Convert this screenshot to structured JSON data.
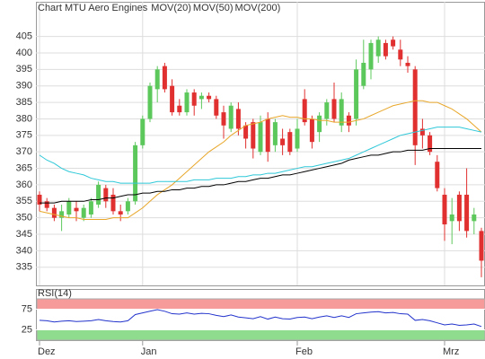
{
  "chart_data": [
    {
      "type": "candlestick",
      "title": "Chart MTU Aero Engines",
      "title_color": "#d9452b",
      "up_color": "#5cc85c",
      "down_color": "#e03030",
      "open": [
        357,
        355,
        353,
        350,
        351,
        353,
        350,
        351,
        354,
        359,
        357,
        352,
        352,
        355,
        372,
        380,
        389,
        396,
        390,
        384,
        382,
        388,
        386,
        387,
        386,
        382,
        377,
        383,
        378,
        379,
        370,
        380,
        372,
        374,
        376,
        371,
        386,
        380,
        376,
        380,
        386,
        378,
        381,
        380,
        390,
        395,
        399,
        403,
        404,
        401,
        397,
        395,
        377,
        375,
        367,
        357,
        349,
        357,
        357,
        349,
        346
      ],
      "high": [
        358,
        356,
        354,
        354,
        356,
        355,
        354,
        356,
        361,
        360,
        359,
        354,
        356,
        373,
        381,
        391,
        396,
        397,
        392,
        386,
        389,
        389,
        388,
        388,
        387,
        384,
        385,
        385,
        379,
        380,
        381,
        382,
        380,
        377,
        377,
        380,
        389,
        381,
        382,
        386,
        391,
        388,
        382,
        398,
        404,
        404,
        405,
        404,
        405,
        404,
        399,
        396,
        380,
        376,
        369,
        359,
        356,
        358,
        365,
        353,
        347
      ],
      "low": [
        352,
        352,
        349,
        346,
        350,
        349,
        349,
        350,
        353,
        353,
        351,
        349,
        351,
        354,
        371,
        379,
        385,
        388,
        381,
        381,
        381,
        381,
        383,
        385,
        380,
        374,
        376,
        375,
        371,
        368,
        369,
        367,
        370,
        369,
        369,
        370,
        378,
        371,
        373,
        378,
        379,
        376,
        376,
        378,
        389,
        392,
        397,
        398,
        401,
        396,
        394,
        366,
        371,
        369,
        358,
        343,
        342,
        346,
        344,
        345,
        332
      ],
      "close": [
        354,
        353,
        350,
        352,
        355,
        352,
        353,
        355,
        360,
        355,
        352,
        351,
        355,
        372,
        380,
        390,
        395,
        389,
        382,
        382,
        388,
        384,
        387,
        386,
        381,
        378,
        384,
        377,
        374,
        371,
        379,
        370,
        379,
        372,
        370,
        377,
        379,
        373,
        381,
        385,
        380,
        386,
        378,
        395,
        397,
        403,
        404,
        399,
        402,
        398,
        396,
        372,
        375,
        370,
        359,
        348,
        351,
        349,
        346,
        351,
        337
      ],
      "series": [
        {
          "name": "MOV(20)",
          "color": "#e8a72a",
          "values": [
            352,
            351.5,
            351,
            350.5,
            350,
            350,
            349.5,
            349.5,
            349.5,
            349.5,
            350,
            350,
            350,
            351.5,
            353,
            355,
            357,
            358.5,
            360,
            362,
            364,
            366,
            368,
            370,
            371.5,
            373,
            375,
            376.5,
            378,
            378.5,
            379,
            380,
            380.5,
            381,
            380.5,
            380.5,
            380,
            380,
            379.5,
            379.5,
            379,
            379,
            379,
            379.5,
            380,
            381,
            382,
            383,
            384,
            384.5,
            385,
            385.5,
            385.5,
            385,
            385,
            384,
            383,
            381.5,
            380,
            378,
            376
          ]
        },
        {
          "name": "MOV(50)",
          "color": "#2ec8d8",
          "values": [
            369,
            367.5,
            366.5,
            365,
            364,
            363.5,
            363,
            362,
            361.5,
            361,
            361,
            360.5,
            360.5,
            360.5,
            360.5,
            360.5,
            361,
            361,
            361,
            361,
            361,
            361.5,
            361.5,
            361.5,
            362,
            362,
            362,
            362.5,
            362.5,
            363,
            363,
            363.5,
            363.5,
            364,
            364.5,
            365,
            365.5,
            365.5,
            366,
            366.5,
            367,
            367.5,
            368,
            369,
            370,
            371,
            372,
            373,
            374,
            375,
            375.5,
            376,
            376.5,
            377,
            377.5,
            377.5,
            377.5,
            377.5,
            377,
            376.5,
            376
          ]
        },
        {
          "name": "MOV(200)",
          "color": "#000000",
          "values": [
            354.5,
            354.5,
            354.5,
            355,
            355,
            355,
            355,
            355.5,
            355.5,
            356,
            356,
            356.5,
            357,
            357,
            357.5,
            357.5,
            358,
            358,
            358.5,
            358.5,
            359,
            359,
            359.5,
            359.5,
            360,
            360,
            360.5,
            361,
            361,
            361.5,
            362,
            362,
            362.5,
            363,
            363,
            363.5,
            364,
            364.5,
            365,
            365.5,
            366,
            366.5,
            367.5,
            368,
            368.5,
            369,
            369,
            369.5,
            370,
            370,
            370.5,
            370.5,
            370.5,
            371,
            371,
            371,
            371,
            371,
            371,
            371,
            371
          ]
        }
      ],
      "ylim": [
        329.5,
        415.5
      ],
      "yticks": [
        335,
        340,
        345,
        350,
        355,
        360,
        365,
        370,
        375,
        380,
        385,
        390,
        395,
        400,
        405
      ],
      "grid": true
    },
    {
      "type": "line",
      "title": "RSI(14)",
      "categories": [
        "Dez",
        null,
        null,
        null,
        null,
        null,
        null,
        null,
        null,
        null,
        null,
        null,
        null,
        null,
        "Jan",
        null,
        null,
        null,
        null,
        null,
        null,
        null,
        null,
        null,
        null,
        null,
        null,
        null,
        null,
        null,
        null,
        null,
        null,
        null,
        null,
        "Feb",
        null,
        null,
        null,
        null,
        null,
        null,
        null,
        null,
        null,
        null,
        null,
        null,
        null,
        null,
        null,
        null,
        null,
        null,
        null,
        "Mrz",
        null,
        null,
        null,
        null,
        null
      ],
      "series": [
        {
          "color": "#2233cc",
          "values": [
            48,
            47,
            44,
            46,
            47,
            45,
            46,
            47,
            50,
            47,
            45,
            44,
            47,
            62,
            66,
            70,
            74,
            70,
            64,
            63,
            66,
            63,
            65,
            64,
            60,
            57,
            61,
            56,
            54,
            52,
            57,
            51,
            56,
            52,
            51,
            55,
            56,
            52,
            56,
            59,
            55,
            59,
            55,
            64,
            66,
            68,
            69,
            66,
            67,
            64,
            63,
            48,
            50,
            47,
            42,
            37,
            39,
            36,
            37,
            39,
            33
          ]
        }
      ],
      "ylim": [
        0,
        100
      ],
      "yticks": [
        25,
        75
      ],
      "bands": [
        {
          "from": 75,
          "to": 100,
          "color": "#f79a9a"
        },
        {
          "from": 0,
          "to": 25,
          "color": "#8fdc8f"
        }
      ]
    }
  ]
}
